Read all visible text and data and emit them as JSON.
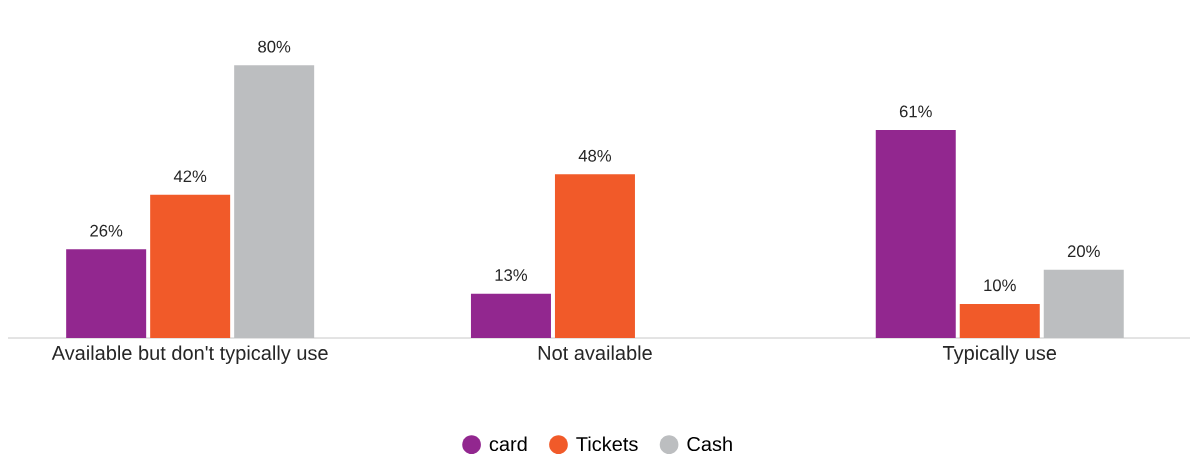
{
  "chart_data": {
    "type": "bar",
    "categories": [
      "Available but don't typically use",
      "Not available",
      "Typically use"
    ],
    "series": [
      {
        "name": "card",
        "color": "#92278f",
        "values": [
          26,
          13,
          61
        ],
        "value_labels": [
          "26%",
          "13%",
          "61%"
        ]
      },
      {
        "name": "Tickets",
        "color": "#f15a29",
        "values": [
          42,
          48,
          10
        ],
        "value_labels": [
          "42%",
          "48%",
          "10%"
        ]
      },
      {
        "name": "Cash",
        "color": "#bcbec0",
        "values": [
          80,
          null,
          20
        ],
        "value_labels": [
          "80%",
          null,
          "20%"
        ]
      }
    ],
    "legend": "bottom"
  }
}
